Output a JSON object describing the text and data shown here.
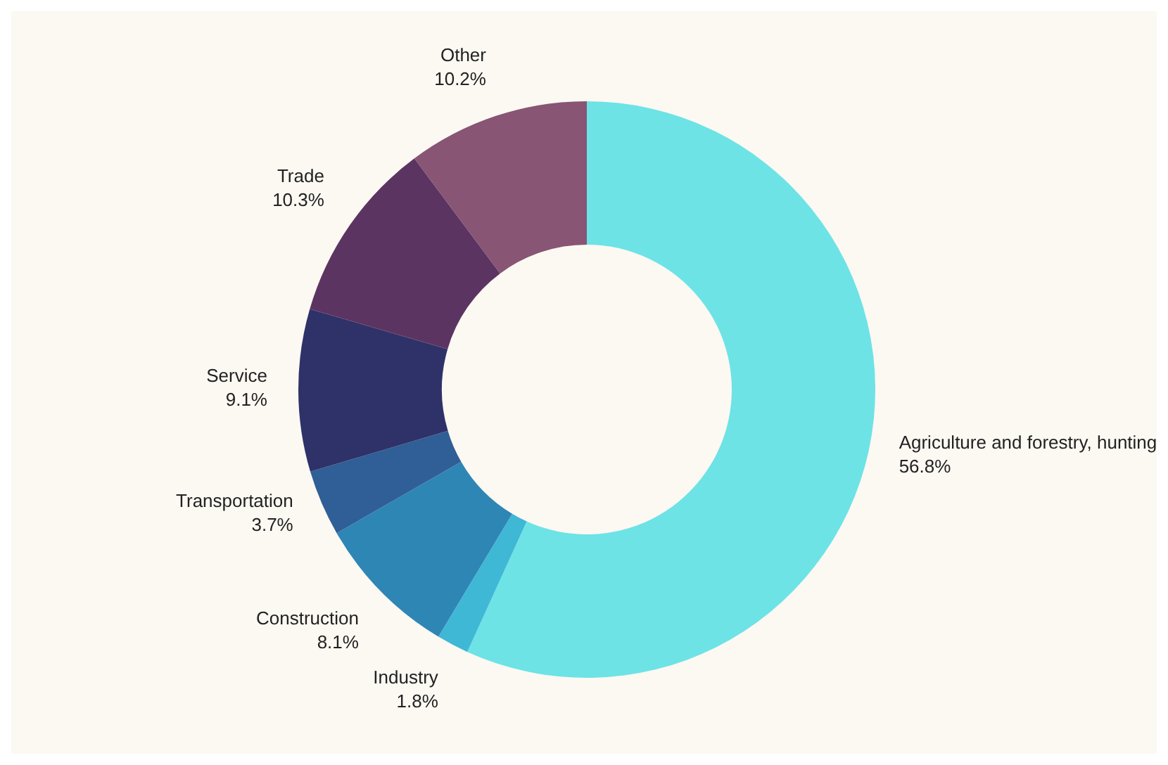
{
  "chart_data": {
    "type": "donut",
    "categories": [
      "Agriculture and forestry, hunting",
      "Industry",
      "Construction",
      "Transportation",
      "Service",
      "Trade",
      "Other"
    ],
    "values": [
      56.8,
      1.8,
      8.1,
      3.7,
      9.1,
      10.3,
      10.2
    ],
    "value_labels": [
      "56.8%",
      "1.8%",
      "8.1%",
      "3.7%",
      "9.1%",
      "10.3%",
      "10.2%"
    ],
    "colors": [
      "#6de3e6",
      "#3fb8d6",
      "#2e86b5",
      "#2f5f96",
      "#2f3268",
      "#5c3462",
      "#885574"
    ],
    "legend": false
  }
}
